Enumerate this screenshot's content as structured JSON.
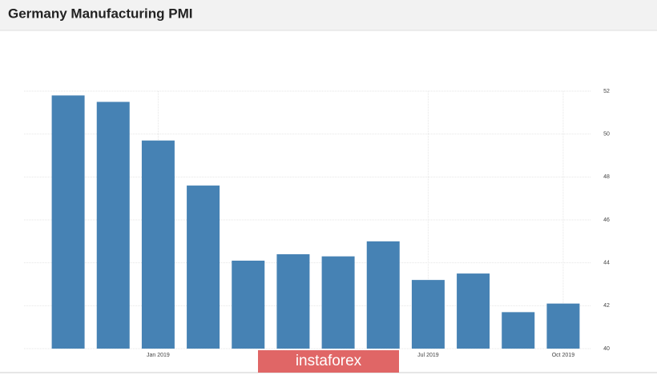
{
  "chart_data": {
    "type": "bar",
    "title": "Germany Manufacturing PMI",
    "categories": [
      null,
      null,
      "Jan 2019",
      null,
      null,
      null,
      null,
      null,
      "Jul 2019",
      null,
      null,
      "Oct 2019"
    ],
    "values": [
      51.8,
      51.5,
      49.7,
      47.6,
      44.1,
      44.4,
      44.3,
      45.0,
      43.2,
      43.5,
      41.7,
      42.1
    ],
    "color": "#4682b4",
    "ylim": [
      40,
      52
    ],
    "yticks": [
      40,
      42,
      44,
      46,
      48,
      50,
      52
    ],
    "grid": true
  },
  "watermark": "instaforex"
}
